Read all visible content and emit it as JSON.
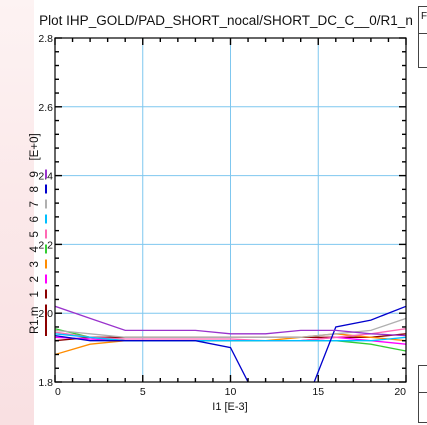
{
  "chart_data": {
    "type": "line",
    "title": "Plot IHP_GOLD/PAD_SHORT_nocal/SHORT_DC_C__0/R1_n",
    "xlabel": "I1  [E-3]",
    "ylabel_parts": [
      "R1.m",
      "1",
      "2",
      "3",
      "4",
      "5",
      "6",
      "7",
      "8",
      "9",
      "[E+0]"
    ],
    "xlim": [
      0,
      20
    ],
    "ylim": [
      1.8,
      2.8
    ],
    "x_ticks": [
      "0",
      "5",
      "10",
      "15",
      "20"
    ],
    "y_ticks": [
      "1.8",
      "2.0",
      "2.2",
      "2.4",
      "2.6",
      "2.8"
    ],
    "grid": true,
    "x": [
      0,
      2,
      4,
      6,
      8,
      10,
      12,
      14,
      16,
      18,
      20
    ],
    "series": [
      {
        "color": "#8b0000",
        "values": [
          1.92,
          1.93,
          1.93,
          1.93,
          1.93,
          1.93,
          1.93,
          1.93,
          1.93,
          1.93,
          1.94
        ]
      },
      {
        "color": "#ff00ff",
        "values": [
          1.93,
          1.925,
          1.92,
          1.92,
          1.92,
          1.92,
          1.92,
          1.92,
          1.93,
          1.92,
          1.91
        ]
      },
      {
        "color": "#ff8c00",
        "values": [
          1.88,
          1.91,
          1.92,
          1.92,
          1.92,
          1.92,
          1.92,
          1.93,
          1.94,
          1.93,
          1.92
        ]
      },
      {
        "color": "#32cd32",
        "values": [
          1.955,
          1.93,
          1.92,
          1.92,
          1.92,
          1.92,
          1.92,
          1.92,
          1.92,
          1.91,
          1.89
        ]
      },
      {
        "color": "#ff69b4",
        "values": [
          1.945,
          1.93,
          1.925,
          1.925,
          1.925,
          1.925,
          1.92,
          1.92,
          1.93,
          1.94,
          1.955
        ]
      },
      {
        "color": "#00bfff",
        "values": [
          1.94,
          1.93,
          1.92,
          1.92,
          1.92,
          1.92,
          1.92,
          1.92,
          1.92,
          1.92,
          1.93
        ]
      },
      {
        "color": "#b0b0b0",
        "values": [
          1.95,
          1.94,
          1.93,
          1.93,
          1.93,
          1.93,
          1.93,
          1.93,
          1.94,
          1.95,
          1.985
        ]
      },
      {
        "color": "#0000cd",
        "values": [
          1.935,
          1.92,
          1.92,
          1.92,
          1.92,
          1.9,
          1.7,
          1.7,
          1.96,
          1.98,
          2.02
        ]
      },
      {
        "color": "#9932cc",
        "values": [
          2.02,
          1.985,
          1.95,
          1.95,
          1.95,
          1.94,
          1.94,
          1.95,
          1.95,
          1.94,
          1.935
        ]
      }
    ]
  }
}
